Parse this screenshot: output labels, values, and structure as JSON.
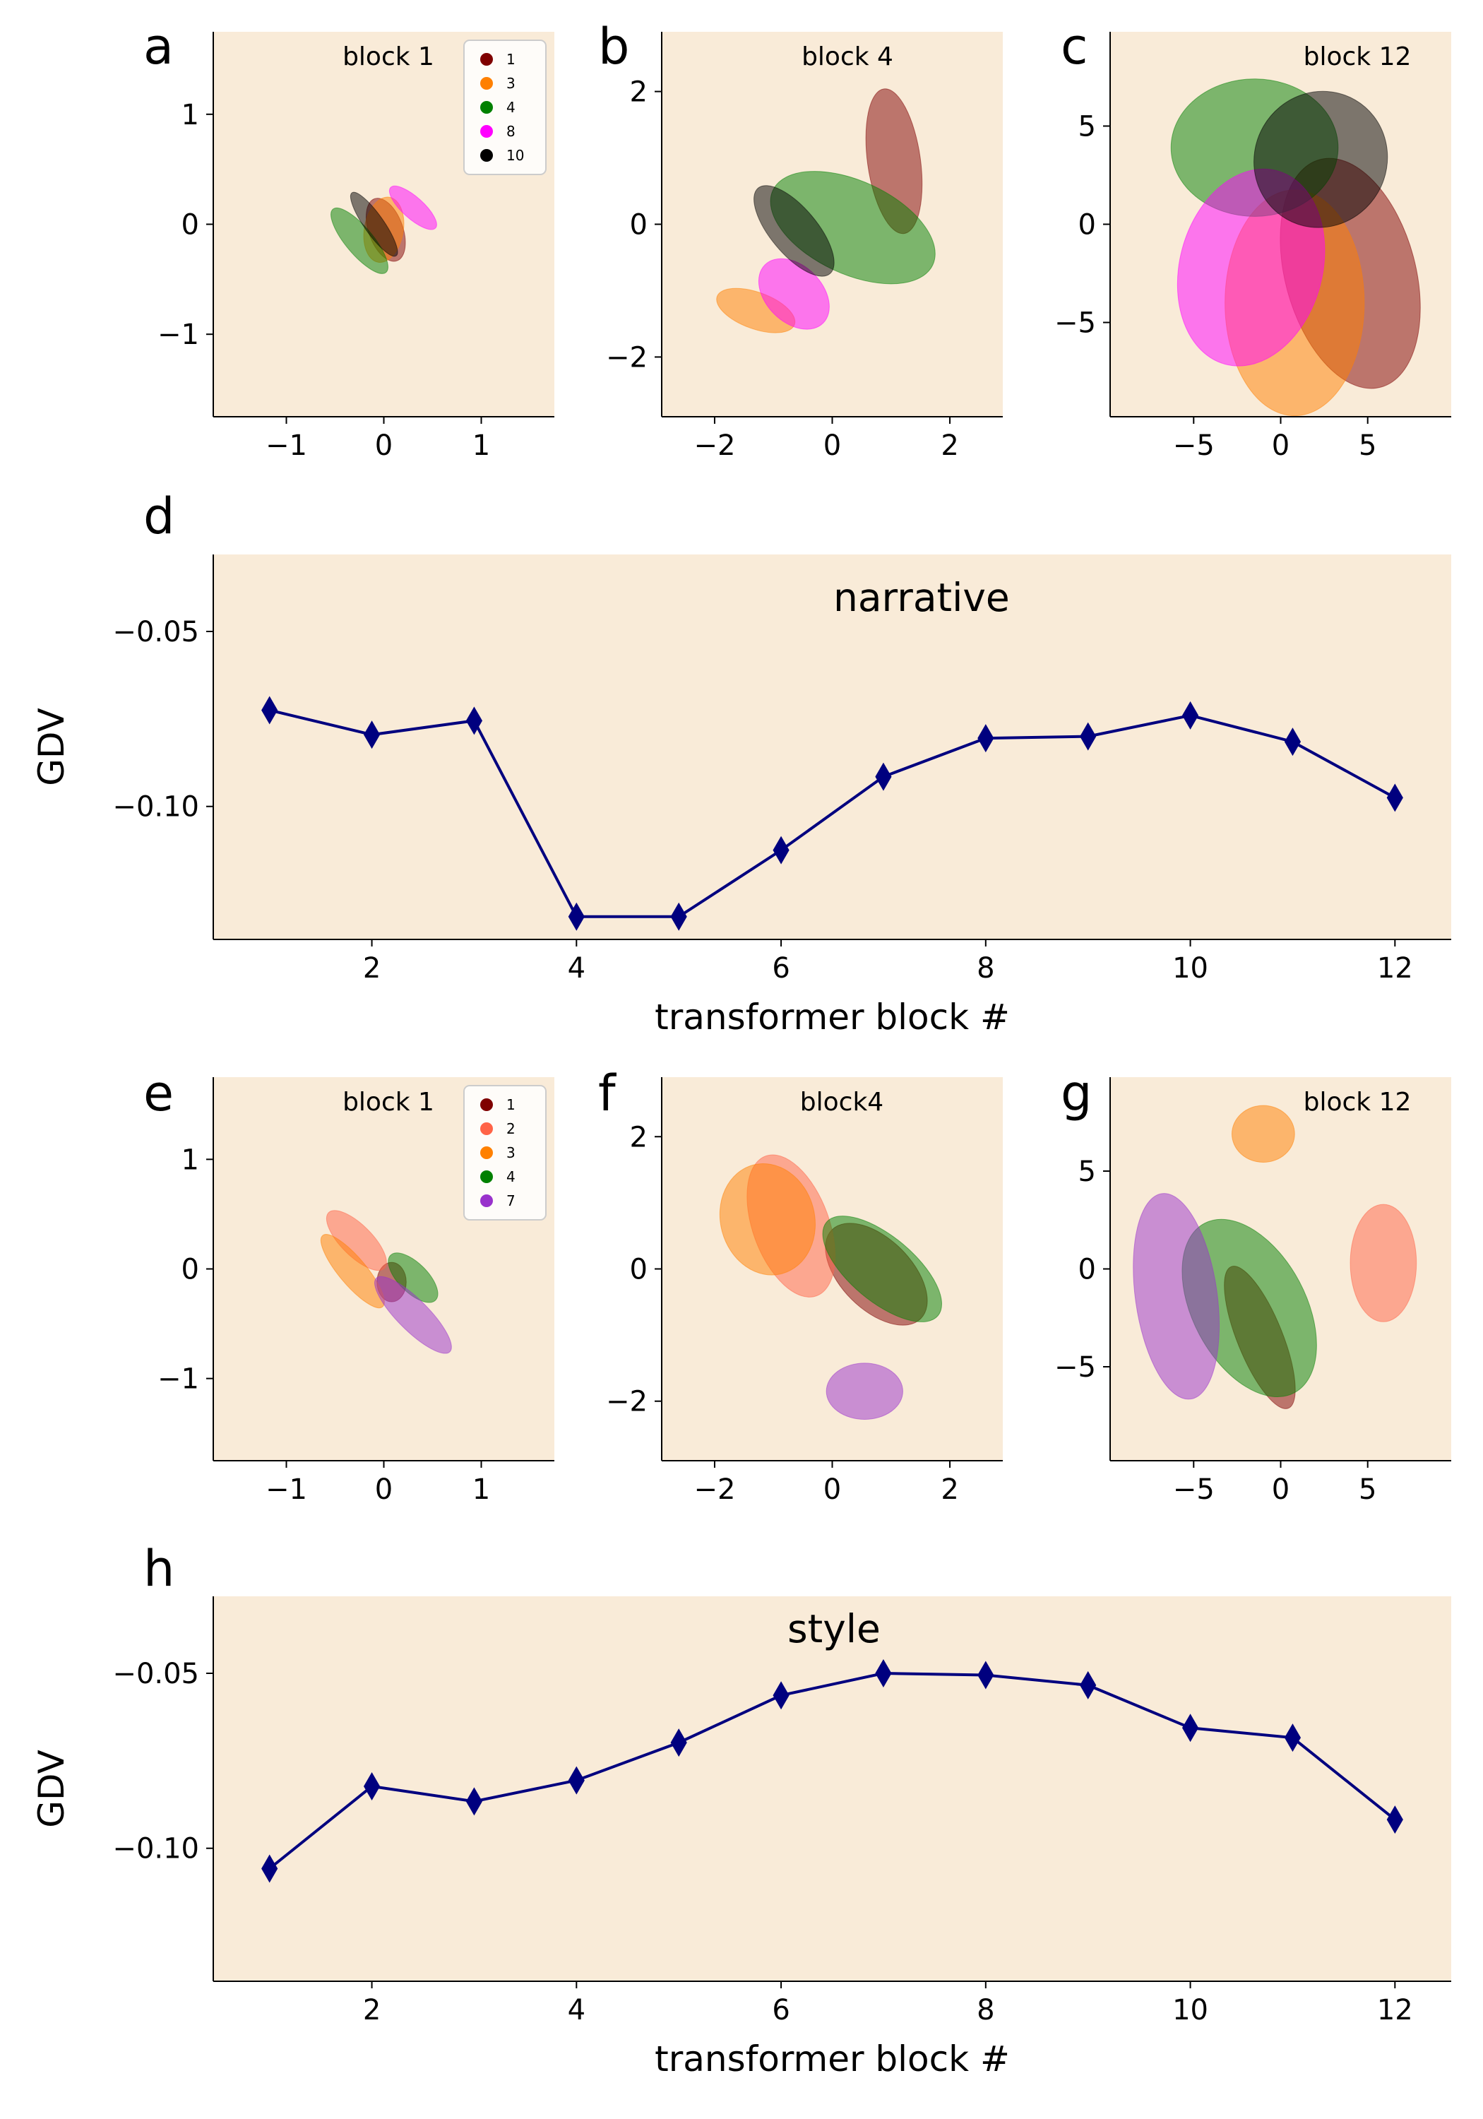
{
  "colors": {
    "plot_background": "#f9ebd8",
    "line": "#00007f",
    "axis": "#000000"
  },
  "chart_data": [
    {
      "panel": "a",
      "type": "scatter",
      "subtype": "cluster-ellipses",
      "title": "block 1",
      "xlim": [
        -1.75,
        1.75
      ],
      "ylim": [
        -1.75,
        1.75
      ],
      "xticks": [
        -1,
        0,
        1
      ],
      "yticks": [
        -1,
        0,
        1
      ],
      "xtick_labels": [
        "−1",
        "0",
        "1"
      ],
      "ytick_labels": [
        "−1",
        "0",
        "1"
      ],
      "legend": {
        "position": "top-right",
        "entries": [
          {
            "label": "1",
            "color": "#7f0000"
          },
          {
            "label": "3",
            "color": "#ff8000"
          },
          {
            "label": "4",
            "color": "#008000"
          },
          {
            "label": "8",
            "color": "#ff00ff"
          },
          {
            "label": "10",
            "color": "#000000"
          }
        ]
      },
      "series": [
        {
          "name": "1",
          "color": "#7f0000",
          "center": [
            0.02,
            -0.05
          ],
          "width": 0.35,
          "height": 0.6,
          "angle": 20
        },
        {
          "name": "3",
          "color": "#ff8000",
          "center": [
            0.0,
            -0.05
          ],
          "width": 0.4,
          "height": 0.6,
          "angle": -10
        },
        {
          "name": "4",
          "color": "#008000",
          "center": [
            -0.25,
            -0.15
          ],
          "width": 0.28,
          "height": 0.75,
          "angle": 40
        },
        {
          "name": "8",
          "color": "#ff00ff",
          "center": [
            0.3,
            0.15
          ],
          "width": 0.22,
          "height": 0.55,
          "angle": 48
        },
        {
          "name": "10",
          "color": "#000000",
          "center": [
            -0.1,
            0.0
          ],
          "width": 0.2,
          "height": 0.7,
          "angle": 35
        }
      ]
    },
    {
      "panel": "b",
      "type": "scatter",
      "subtype": "cluster-ellipses",
      "title": "block 4",
      "xlim": [
        -2.9,
        2.9
      ],
      "ylim": [
        -2.9,
        2.9
      ],
      "xticks": [
        -2,
        0,
        2
      ],
      "yticks": [
        -2,
        0,
        2
      ],
      "xtick_labels": [
        "−2",
        "0",
        "2"
      ],
      "ytick_labels": [
        "−2",
        "0",
        "2"
      ],
      "series": [
        {
          "name": "1",
          "color": "#7f0000",
          "center": [
            1.05,
            0.95
          ],
          "width": 0.9,
          "height": 2.2,
          "angle": 8
        },
        {
          "name": "3",
          "color": "#ff8000",
          "center": [
            -1.3,
            -1.3
          ],
          "width": 1.4,
          "height": 0.55,
          "angle": -20
        },
        {
          "name": "4",
          "color": "#008000",
          "center": [
            0.35,
            -0.05
          ],
          "width": 3.0,
          "height": 1.4,
          "angle": -25
        },
        {
          "name": "8",
          "color": "#ff00ff",
          "center": [
            -0.65,
            -1.05
          ],
          "width": 1.4,
          "height": 0.85,
          "angle": -45
        },
        {
          "name": "10",
          "color": "#000000",
          "center": [
            -0.65,
            -0.1
          ],
          "width": 1.9,
          "height": 0.7,
          "angle": -50
        }
      ]
    },
    {
      "panel": "c",
      "type": "scatter",
      "subtype": "cluster-ellipses",
      "title": "block 12",
      "xlim": [
        -9.8,
        9.8
      ],
      "ylim": [
        -9.8,
        9.8
      ],
      "xticks": [
        -5,
        0,
        5
      ],
      "yticks": [
        -5,
        0,
        5
      ],
      "xtick_labels": [
        "−5",
        "0",
        "5"
      ],
      "ytick_labels": [
        "−5",
        "0",
        "5"
      ],
      "series": [
        {
          "name": "1",
          "color": "#7f0000",
          "center": [
            4.0,
            -2.5
          ],
          "width": 7.5,
          "height": 12.0,
          "angle": 15
        },
        {
          "name": "3",
          "color": "#ff8000",
          "center": [
            0.8,
            -4.0
          ],
          "width": 8.0,
          "height": 11.5,
          "angle": 0
        },
        {
          "name": "4",
          "color": "#008000",
          "center": [
            -1.5,
            3.9
          ],
          "width": 9.6,
          "height": 7.0,
          "angle": 0
        },
        {
          "name": "8",
          "color": "#ff00ff",
          "center": [
            -1.7,
            -2.2
          ],
          "width": 8.2,
          "height": 10.2,
          "angle": -15
        },
        {
          "name": "10",
          "color": "#000000",
          "center": [
            2.3,
            3.3
          ],
          "width": 7.6,
          "height": 7.0,
          "angle": -30
        }
      ]
    },
    {
      "panel": "d",
      "type": "line",
      "title": "narrative",
      "xlabel": "transformer block #",
      "ylabel": "GDV",
      "xlim": [
        0.45,
        12.55
      ],
      "ylim": [
        -0.138,
        -0.028
      ],
      "xticks": [
        2,
        4,
        6,
        8,
        10,
        12
      ],
      "xtick_labels": [
        "2",
        "4",
        "6",
        "8",
        "10",
        "12"
      ],
      "yticks": [
        -0.05,
        -0.1
      ],
      "ytick_labels": [
        "−0.05",
        "−0.10"
      ],
      "marker": "diamond",
      "x": [
        1,
        2,
        3,
        4,
        5,
        6,
        7,
        8,
        9,
        10,
        11,
        12
      ],
      "values": [
        -0.0725,
        -0.0795,
        -0.0755,
        -0.1315,
        -0.1315,
        -0.1125,
        -0.0915,
        -0.0805,
        -0.08,
        -0.074,
        -0.0815,
        -0.0975
      ]
    },
    {
      "panel": "e",
      "type": "scatter",
      "subtype": "cluster-ellipses",
      "title": "block 1",
      "xlim": [
        -1.75,
        1.75
      ],
      "ylim": [
        -1.75,
        1.75
      ],
      "xticks": [
        -1,
        0,
        1
      ],
      "yticks": [
        -1,
        0,
        1
      ],
      "xtick_labels": [
        "−1",
        "0",
        "1"
      ],
      "ytick_labels": [
        "−1",
        "0",
        "1"
      ],
      "legend": {
        "position": "top-right",
        "entries": [
          {
            "label": "1",
            "color": "#7f0000"
          },
          {
            "label": "2",
            "color": "#ff6347"
          },
          {
            "label": "3",
            "color": "#ff8000"
          },
          {
            "label": "4",
            "color": "#008000"
          },
          {
            "label": "7",
            "color": "#9932cc"
          }
        ]
      },
      "series": [
        {
          "name": "1",
          "color": "#7f0000",
          "center": [
            0.08,
            -0.12
          ],
          "width": 0.3,
          "height": 0.36,
          "angle": 0
        },
        {
          "name": "2",
          "color": "#ff6347",
          "center": [
            -0.28,
            0.26
          ],
          "width": 0.32,
          "height": 0.72,
          "angle": 45
        },
        {
          "name": "3",
          "color": "#ff8000",
          "center": [
            -0.32,
            -0.02
          ],
          "width": 0.28,
          "height": 0.85,
          "angle": 40
        },
        {
          "name": "4",
          "color": "#008000",
          "center": [
            0.3,
            -0.08
          ],
          "width": 0.3,
          "height": 0.58,
          "angle": 45
        },
        {
          "name": "7",
          "color": "#9932cc",
          "center": [
            0.3,
            -0.42
          ],
          "width": 0.32,
          "height": 0.95,
          "angle": 45
        }
      ]
    },
    {
      "panel": "f",
      "type": "scatter",
      "subtype": "cluster-ellipses",
      "title": "block4",
      "xlim": [
        -2.9,
        2.9
      ],
      "ylim": [
        -2.9,
        2.9
      ],
      "xticks": [
        -2,
        0,
        2
      ],
      "yticks": [
        -2,
        0,
        2
      ],
      "xtick_labels": [
        "−2",
        "0",
        "2"
      ],
      "ytick_labels": [
        "−2",
        "0",
        "2"
      ],
      "series": [
        {
          "name": "1",
          "color": "#7f0000",
          "center": [
            0.75,
            -0.08
          ],
          "width": 1.2,
          "height": 1.9,
          "angle": 45
        },
        {
          "name": "2",
          "color": "#ff6347",
          "center": [
            -0.7,
            0.65
          ],
          "width": 1.3,
          "height": 2.25,
          "angle": 20
        },
        {
          "name": "3",
          "color": "#ff8000",
          "center": [
            -1.1,
            0.75
          ],
          "width": 1.6,
          "height": 1.7,
          "angle": 15
        },
        {
          "name": "4",
          "color": "#008000",
          "center": [
            0.85,
            0.0
          ],
          "width": 1.1,
          "height": 2.2,
          "angle": 50
        },
        {
          "name": "7",
          "color": "#9932cc",
          "center": [
            0.55,
            -1.85
          ],
          "width": 1.3,
          "height": 0.85,
          "angle": 0
        }
      ]
    },
    {
      "panel": "g",
      "type": "scatter",
      "subtype": "cluster-ellipses",
      "title": "block 12",
      "xlim": [
        -9.8,
        9.8
      ],
      "ylim": [
        -9.8,
        9.8
      ],
      "xticks": [
        -5,
        0,
        5
      ],
      "yticks": [
        -5,
        0,
        5
      ],
      "xtick_labels": [
        "−5",
        "0",
        "5"
      ],
      "ytick_labels": [
        "−5",
        "0",
        "5"
      ],
      "series": [
        {
          "name": "1",
          "color": "#7f0000",
          "center": [
            -1.2,
            -3.5
          ],
          "width": 2.6,
          "height": 7.8,
          "angle": 22
        },
        {
          "name": "2",
          "color": "#ff6347",
          "center": [
            5.9,
            0.3
          ],
          "width": 3.8,
          "height": 6.0,
          "angle": 0
        },
        {
          "name": "3",
          "color": "#ff8000",
          "center": [
            -1.0,
            6.9
          ],
          "width": 3.6,
          "height": 2.9,
          "angle": 0
        },
        {
          "name": "4",
          "color": "#008000",
          "center": [
            -1.8,
            -2.0
          ],
          "width": 6.5,
          "height": 9.8,
          "angle": 28
        },
        {
          "name": "7",
          "color": "#9932cc",
          "center": [
            -6.0,
            -1.4
          ],
          "width": 4.7,
          "height": 10.6,
          "angle": 8
        }
      ]
    },
    {
      "panel": "h",
      "type": "line",
      "title": "style",
      "xlabel": "transformer block #",
      "ylabel": "GDV",
      "xlim": [
        0.45,
        12.55
      ],
      "ylim": [
        -0.138,
        -0.028
      ],
      "xticks": [
        2,
        4,
        6,
        8,
        10,
        12
      ],
      "xtick_labels": [
        "2",
        "4",
        "6",
        "8",
        "10",
        "12"
      ],
      "yticks": [
        -0.05,
        -0.1
      ],
      "ytick_labels": [
        "−0.05",
        "−0.10"
      ],
      "marker": "diamond",
      "x": [
        1,
        2,
        3,
        4,
        5,
        6,
        7,
        8,
        9,
        10,
        11,
        12
      ],
      "values": [
        -0.1058,
        -0.0823,
        -0.0866,
        -0.0806,
        -0.0698,
        -0.0563,
        -0.05,
        -0.0505,
        -0.0534,
        -0.0656,
        -0.0684,
        -0.0918
      ]
    }
  ]
}
